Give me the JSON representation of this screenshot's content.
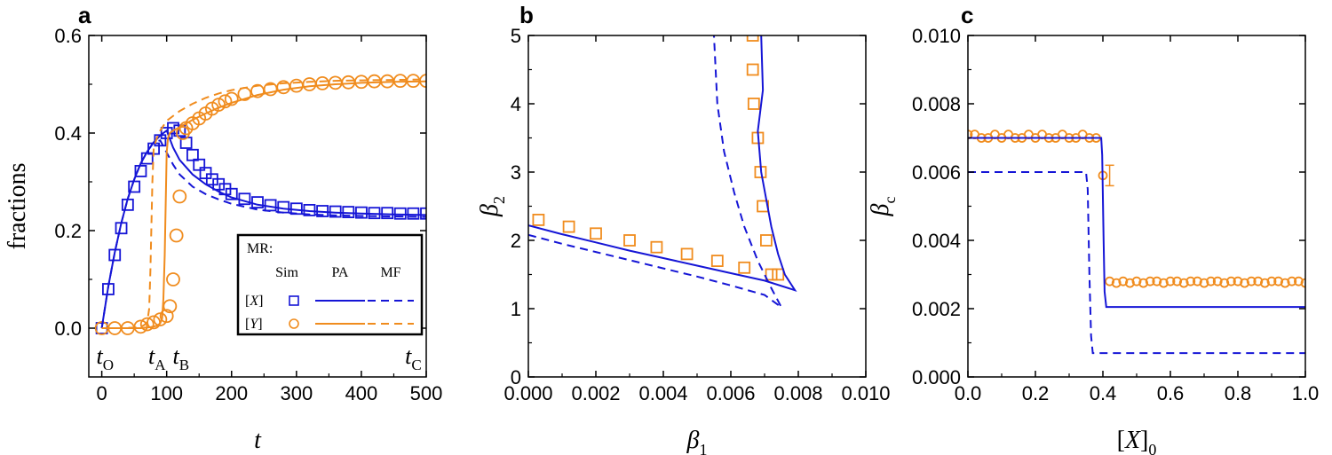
{
  "colors": {
    "blue": "#1515d6",
    "orange": "#f08c1e"
  },
  "chart_data": [
    {
      "type": "line",
      "panel_label": "a",
      "xlabel": "t",
      "ylabel": "fractions",
      "xlim": [
        -20,
        500
      ],
      "ylim": [
        -0.1,
        0.6
      ],
      "xticks": [
        0,
        100,
        200,
        300,
        400,
        500
      ],
      "yticks": [
        0.0,
        0.2,
        0.4,
        0.6
      ],
      "xtick_labels": [
        "0",
        "100",
        "200",
        "300",
        "400",
        "500"
      ],
      "ytick_labels": [
        "0.0",
        "0.2",
        "0.4",
        "0.6"
      ],
      "legend": {
        "placement": "bottom-right",
        "title": "MR:",
        "column_headers": [
          "Sim",
          "PA",
          "MF"
        ],
        "row_labels": [
          "[X]",
          "[Y]"
        ]
      },
      "annotations": [
        {
          "text": "t",
          "sub": "O",
          "x": 5
        },
        {
          "text": "t",
          "sub": "A",
          "x": 85
        },
        {
          "text": "t",
          "sub": "B",
          "x": 122
        },
        {
          "text": "t",
          "sub": "C",
          "x": 480
        }
      ],
      "series": [
        {
          "name": "[X] Sim",
          "kind": "scatter",
          "marker": "square",
          "color": "blue",
          "x": [
            0,
            10,
            20,
            30,
            40,
            50,
            60,
            70,
            80,
            90,
            100,
            110,
            120,
            130,
            140,
            150,
            160,
            170,
            180,
            190,
            200,
            220,
            240,
            260,
            280,
            300,
            320,
            340,
            360,
            380,
            400,
            420,
            440,
            460,
            480,
            500
          ],
          "y": [
            0.0,
            0.08,
            0.15,
            0.205,
            0.253,
            0.29,
            0.322,
            0.348,
            0.368,
            0.385,
            0.4,
            0.41,
            0.405,
            0.38,
            0.355,
            0.335,
            0.318,
            0.305,
            0.295,
            0.285,
            0.275,
            0.265,
            0.258,
            0.252,
            0.248,
            0.245,
            0.242,
            0.24,
            0.239,
            0.238,
            0.237,
            0.236,
            0.236,
            0.235,
            0.235,
            0.235
          ]
        },
        {
          "name": "[Y] Sim",
          "kind": "scatter",
          "marker": "circle",
          "color": "orange",
          "x": [
            0,
            20,
            40,
            60,
            70,
            80,
            90,
            100,
            105,
            110,
            115,
            120,
            125,
            130,
            140,
            150,
            160,
            170,
            180,
            190,
            200,
            220,
            240,
            260,
            280,
            300,
            320,
            340,
            360,
            380,
            400,
            420,
            440,
            460,
            480,
            500
          ],
          "y": [
            0.0,
            0.0,
            0.0,
            0.003,
            0.008,
            0.012,
            0.018,
            0.025,
            0.045,
            0.1,
            0.19,
            0.27,
            0.4,
            0.41,
            0.42,
            0.43,
            0.44,
            0.45,
            0.458,
            0.465,
            0.47,
            0.48,
            0.486,
            0.49,
            0.494,
            0.497,
            0.5,
            0.502,
            0.503,
            0.504,
            0.505,
            0.506,
            0.506,
            0.507,
            0.507,
            0.507
          ]
        },
        {
          "name": "[X] PA",
          "kind": "line",
          "style": "solid",
          "color": "blue",
          "x": [
            0,
            10,
            20,
            30,
            40,
            50,
            60,
            70,
            80,
            90,
            95,
            100,
            110,
            120,
            140,
            160,
            180,
            200,
            240,
            280,
            320,
            360,
            400,
            450,
            500
          ],
          "y": [
            0.0,
            0.085,
            0.155,
            0.215,
            0.265,
            0.305,
            0.338,
            0.362,
            0.381,
            0.395,
            0.4,
            0.405,
            0.37,
            0.345,
            0.315,
            0.295,
            0.28,
            0.268,
            0.253,
            0.245,
            0.24,
            0.237,
            0.235,
            0.233,
            0.232
          ]
        },
        {
          "name": "[X] MF",
          "kind": "line",
          "style": "dashed",
          "color": "blue",
          "x": [
            0,
            10,
            20,
            30,
            40,
            50,
            60,
            70,
            80,
            90,
            100,
            110,
            120,
            140,
            160,
            180,
            200,
            240,
            280,
            320,
            360,
            400,
            450,
            500
          ],
          "y": [
            0.0,
            0.085,
            0.155,
            0.215,
            0.265,
            0.305,
            0.338,
            0.362,
            0.381,
            0.385,
            0.36,
            0.335,
            0.315,
            0.29,
            0.275,
            0.264,
            0.255,
            0.243,
            0.237,
            0.233,
            0.231,
            0.23,
            0.229,
            0.228
          ]
        },
        {
          "name": "[Y] PA",
          "kind": "line",
          "style": "solid",
          "color": "orange",
          "x": [
            0,
            40,
            60,
            75,
            85,
            90,
            93,
            95,
            97,
            100,
            102,
            105,
            110,
            120,
            140,
            160,
            180,
            200,
            240,
            280,
            320,
            360,
            400,
            450,
            500
          ],
          "y": [
            0.0,
            0.0,
            0.0,
            0.002,
            0.005,
            0.01,
            0.02,
            0.06,
            0.15,
            0.36,
            0.39,
            0.4,
            0.405,
            0.412,
            0.427,
            0.44,
            0.452,
            0.462,
            0.478,
            0.489,
            0.496,
            0.5,
            0.503,
            0.505,
            0.506
          ]
        },
        {
          "name": "[Y] MF",
          "kind": "line",
          "style": "dashed",
          "color": "orange",
          "x": [
            0,
            30,
            50,
            60,
            65,
            70,
            73,
            75,
            78,
            80,
            85,
            90,
            100,
            120,
            140,
            160,
            180,
            200,
            240,
            280,
            320,
            360,
            400,
            450,
            500
          ],
          "y": [
            0.0,
            0.0,
            0.001,
            0.003,
            0.006,
            0.012,
            0.04,
            0.12,
            0.3,
            0.37,
            0.39,
            0.405,
            0.425,
            0.445,
            0.46,
            0.472,
            0.481,
            0.488,
            0.497,
            0.502,
            0.505,
            0.507,
            0.508,
            0.509,
            0.51
          ]
        }
      ]
    },
    {
      "type": "line",
      "panel_label": "b",
      "xlabel": "β1",
      "ylabel": "β2",
      "xlim": [
        0.0,
        0.01
      ],
      "ylim": [
        0,
        5
      ],
      "xticks": [
        0.0,
        0.002,
        0.004,
        0.006,
        0.008,
        0.01
      ],
      "yticks": [
        0,
        1,
        2,
        3,
        4,
        5
      ],
      "xtick_labels": [
        "0.000",
        "0.002",
        "0.004",
        "0.006",
        "0.008",
        "0.010"
      ],
      "ytick_labels": [
        "0",
        "1",
        "2",
        "3",
        "4",
        "5"
      ],
      "series": [
        {
          "name": "Sim lower",
          "kind": "scatter",
          "marker": "square",
          "color": "orange",
          "x": [
            0.0003,
            0.0012,
            0.002,
            0.003,
            0.0038,
            0.0047,
            0.0056,
            0.0064,
            0.0072,
            0.0074
          ],
          "y": [
            2.3,
            2.2,
            2.1,
            2.0,
            1.9,
            1.8,
            1.7,
            1.6,
            1.5,
            1.5
          ]
        },
        {
          "name": "Sim upper",
          "kind": "scatter",
          "marker": "square",
          "color": "orange",
          "x": [
            0.00665,
            0.00665,
            0.00668,
            0.0068,
            0.00688,
            0.00695,
            0.00705
          ],
          "y": [
            5.0,
            4.5,
            4.0,
            3.5,
            3.0,
            2.5,
            2.0
          ]
        },
        {
          "name": "PA",
          "kind": "line",
          "style": "solid",
          "color": "blue",
          "x": [
            0.0,
            0.001,
            0.002,
            0.003,
            0.004,
            0.005,
            0.006,
            0.007,
            0.0079,
            0.0076,
            0.0074,
            0.0072,
            0.00705,
            0.0069,
            0.0068,
            0.00695,
            0.0069
          ],
          "y": [
            2.22,
            2.09,
            1.97,
            1.85,
            1.74,
            1.63,
            1.52,
            1.41,
            1.27,
            1.5,
            1.8,
            2.2,
            2.6,
            3.0,
            3.6,
            4.2,
            5.0
          ]
        },
        {
          "name": "MF",
          "kind": "line",
          "style": "dashed",
          "color": "blue",
          "x": [
            0.0,
            0.001,
            0.002,
            0.003,
            0.004,
            0.005,
            0.006,
            0.007,
            0.0075,
            0.0072,
            0.0068,
            0.0064,
            0.0061,
            0.0058,
            0.0056,
            0.0055
          ],
          "y": [
            2.08,
            1.95,
            1.83,
            1.71,
            1.59,
            1.47,
            1.34,
            1.2,
            1.02,
            1.3,
            1.7,
            2.2,
            2.7,
            3.3,
            4.0,
            5.0
          ]
        }
      ]
    },
    {
      "type": "line",
      "panel_label": "c",
      "xlabel": "[X]0",
      "ylabel": "βc",
      "xlim": [
        0.0,
        1.0
      ],
      "ylim": [
        0.0,
        0.01
      ],
      "xticks": [
        0.0,
        0.2,
        0.4,
        0.6,
        0.8,
        1.0
      ],
      "yticks": [
        0.0,
        0.002,
        0.004,
        0.006,
        0.008,
        0.01
      ],
      "xtick_labels": [
        "0.0",
        "0.2",
        "0.4",
        "0.6",
        "0.8",
        "1.0"
      ],
      "ytick_labels": [
        "0.000",
        "0.002",
        "0.004",
        "0.006",
        "0.008",
        "0.010"
      ],
      "series": [
        {
          "name": "Sim",
          "kind": "scatter",
          "marker": "circle",
          "color": "orange",
          "x": [
            0.0,
            0.02,
            0.04,
            0.06,
            0.08,
            0.1,
            0.12,
            0.14,
            0.16,
            0.18,
            0.2,
            0.22,
            0.24,
            0.26,
            0.28,
            0.3,
            0.32,
            0.34,
            0.36,
            0.38,
            0.4,
            0.42,
            0.44,
            0.46,
            0.48,
            0.5,
            0.52,
            0.54,
            0.56,
            0.58,
            0.6,
            0.62,
            0.64,
            0.66,
            0.68,
            0.7,
            0.72,
            0.74,
            0.76,
            0.78,
            0.8,
            0.82,
            0.84,
            0.86,
            0.88,
            0.9,
            0.92,
            0.94,
            0.96,
            0.98,
            1.0
          ],
          "y": [
            0.0071,
            0.0071,
            0.007,
            0.007,
            0.0071,
            0.007,
            0.0071,
            0.007,
            0.007,
            0.0071,
            0.007,
            0.0071,
            0.007,
            0.007,
            0.0071,
            0.007,
            0.007,
            0.0071,
            0.007,
            0.007,
            0.0059,
            0.0028,
            0.00275,
            0.0028,
            0.00275,
            0.0028,
            0.00275,
            0.0028,
            0.0028,
            0.00275,
            0.0028,
            0.0028,
            0.00275,
            0.0028,
            0.0028,
            0.00275,
            0.0028,
            0.0028,
            0.00275,
            0.0028,
            0.0028,
            0.00275,
            0.0028,
            0.0028,
            0.00275,
            0.0028,
            0.0028,
            0.00275,
            0.0028,
            0.0028,
            0.00275
          ],
          "error_bar": {
            "x": 0.42,
            "y": 0.0059,
            "err": 0.0003
          }
        },
        {
          "name": "PA",
          "kind": "line",
          "style": "solid",
          "color": "blue",
          "x": [
            0.0,
            0.395,
            0.398,
            0.402,
            0.405,
            0.41,
            1.0
          ],
          "y": [
            0.007,
            0.007,
            0.0065,
            0.004,
            0.0025,
            0.00205,
            0.00205
          ]
        },
        {
          "name": "MF",
          "kind": "line",
          "style": "dashed",
          "color": "blue",
          "x": [
            0.0,
            0.35,
            0.355,
            0.36,
            0.365,
            0.37,
            1.0
          ],
          "y": [
            0.006,
            0.006,
            0.0055,
            0.003,
            0.0012,
            0.0007,
            0.0007
          ]
        }
      ]
    }
  ]
}
